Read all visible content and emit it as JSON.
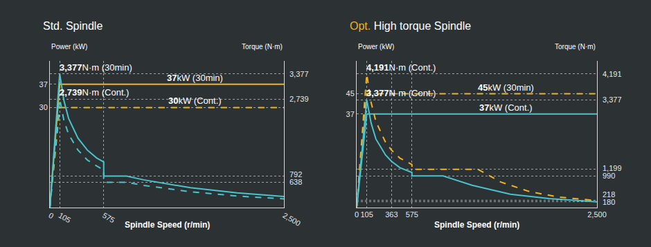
{
  "chart_data": [
    {
      "type": "line",
      "title": "Std. Spindle",
      "x_label": "Spindle Speed (r/min)",
      "y_label": "Power (kW)",
      "y2_label": "Torque (N·m)",
      "xlim": [
        0,
        2500
      ],
      "xticks": [
        0,
        105,
        575,
        {
          "value": 2500,
          "label": "2,500"
        }
      ],
      "ylim": [
        0,
        44
      ],
      "yticks": [
        30,
        37
      ],
      "y2lim": [
        0,
        3700
      ],
      "y2ticks": [
        {
          "value": 3377,
          "label": "3,377"
        },
        {
          "value": 2739,
          "label": "2,739"
        },
        792,
        638
      ],
      "grid": true,
      "series": [
        {
          "color": "#f0b323",
          "line_style": "solid",
          "axis": "y",
          "x": [
            0,
            105,
            2500
          ],
          "values": [
            0,
            37,
            37
          ]
        },
        {
          "color": "#f0b323",
          "line_style": "dash",
          "axis": "y",
          "x": [
            0,
            105,
            2500
          ],
          "values": [
            0,
            30,
            30
          ]
        },
        {
          "color": "#4bc3cc",
          "line_style": "solid",
          "axis": "y2",
          "x": [
            0,
            105,
            150,
            200,
            300,
            400,
            500,
            575,
            575,
            820,
            1000,
            1500,
            2000,
            2500
          ],
          "values": [
            0,
            3377,
            2700,
            2250,
            1750,
            1450,
            1250,
            1150,
            792,
            792,
            700,
            500,
            370,
            280
          ]
        },
        {
          "color": "#4bc3cc",
          "line_style": "dash",
          "axis": "y2",
          "x": [
            0,
            105,
            150,
            200,
            300,
            400,
            500,
            575,
            575,
            820,
            1000,
            1500,
            2000,
            2500
          ],
          "values": [
            0,
            2739,
            2200,
            1850,
            1450,
            1200,
            1050,
            950,
            638,
            638,
            560,
            400,
            290,
            220
          ]
        }
      ],
      "annotations": [
        {
          "text": "3,377",
          "suffix": "N·m (30min)",
          "value": 3377,
          "axis": "y2"
        },
        {
          "text": "37",
          "suffix": "kW (30min)",
          "value": 37,
          "axis": "y"
        },
        {
          "text": "2,739",
          "suffix": "N·m (Cont.)",
          "value": 2739,
          "axis": "y2"
        },
        {
          "text": "30",
          "suffix": "kW (Cont.)",
          "value": 30,
          "axis": "y"
        }
      ]
    },
    {
      "type": "line",
      "title_prefix": "Opt.",
      "title": "High torque Spindle",
      "x_label": "Spindle Speed (r/min)",
      "y_label": "Power (kW)",
      "y2_label": "Torque (N·m)",
      "xlim": [
        0,
        2500
      ],
      "xticks": [
        0,
        105,
        363,
        575,
        {
          "value": 2500,
          "label": "2,500"
        }
      ],
      "ylim": [
        0,
        58
      ],
      "yticks": [
        37,
        45
      ],
      "y2lim": [
        0,
        4600
      ],
      "y2ticks": [
        {
          "value": 4191,
          "label": "4,191"
        },
        {
          "value": 3377,
          "label": "3,377"
        },
        {
          "value": 1199,
          "label": "1,199"
        },
        990,
        218,
        180
      ],
      "grid": true,
      "series": [
        {
          "color": "#f0b323",
          "line_style": "dash",
          "axis": "y",
          "x": [
            0,
            105,
            2500
          ],
          "values": [
            0,
            45,
            45
          ]
        },
        {
          "color": "#4bc3cc",
          "line_style": "solid",
          "axis": "y",
          "x": [
            0,
            105,
            2500
          ],
          "values": [
            0,
            37,
            37
          ]
        },
        {
          "color": "#f0b323",
          "line_style": "dash",
          "axis": "y2",
          "x": [
            0,
            105,
            150,
            200,
            300,
            363,
            450,
            575,
            575,
            1262,
            1500,
            1800,
            2100,
            2500
          ],
          "values": [
            0,
            4191,
            3300,
            2700,
            2050,
            1800,
            1550,
            1350,
            1199,
            1199,
            800,
            500,
            330,
            218
          ]
        },
        {
          "color": "#4bc3cc",
          "line_style": "solid",
          "axis": "y2",
          "x": [
            0,
            105,
            150,
            200,
            300,
            363,
            450,
            575,
            575,
            900,
            1200,
            1600,
            2000,
            2500
          ],
          "values": [
            0,
            3377,
            2650,
            2150,
            1650,
            1450,
            1250,
            1100,
            990,
            990,
            700,
            420,
            280,
            180
          ]
        }
      ],
      "annotations": [
        {
          "text": "4,191",
          "suffix": "N·m (Cont.)",
          "value": 4191,
          "axis": "y2"
        },
        {
          "text": "45",
          "suffix": "kW (30min)",
          "value": 45,
          "axis": "y"
        },
        {
          "text": "3,377",
          "suffix": "N·m (Cont.)",
          "value": 3377,
          "axis": "y2"
        },
        {
          "text": "37",
          "suffix": "kW (Cont.)",
          "value": 37,
          "axis": "y"
        }
      ]
    }
  ]
}
